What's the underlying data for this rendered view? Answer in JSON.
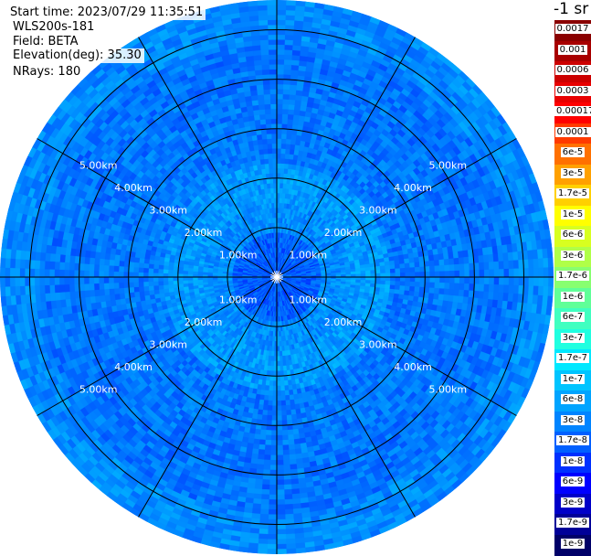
{
  "header": {
    "start_time": "Start time: 2023/07/29 11:35:51",
    "instrument": "WLS200s-181",
    "field": "Field: BETA",
    "elevation": "Elevation(deg): 35.30",
    "nrays": "NRays: 180"
  },
  "colorbar": {
    "unit": "-1 sr",
    "levels": [
      {
        "label": "0.0017",
        "color": "#8a0000"
      },
      {
        "label": "0.001",
        "color": "#a80000"
      },
      {
        "label": "0.0006",
        "color": "#cc0000"
      },
      {
        "label": "0.0003",
        "color": "#e80000"
      },
      {
        "label": "0.00017",
        "color": "#ff0000"
      },
      {
        "label": "0.0001",
        "color": "#ff3a00"
      },
      {
        "label": "6e-5",
        "color": "#ff7000"
      },
      {
        "label": "3e-5",
        "color": "#ffa000"
      },
      {
        "label": "1.7e-5",
        "color": "#ffd000"
      },
      {
        "label": "1e-5",
        "color": "#ffff00"
      },
      {
        "label": "6e-6",
        "color": "#d8ff20"
      },
      {
        "label": "3e-6",
        "color": "#b0ff48"
      },
      {
        "label": "1.7e-6",
        "color": "#88ff70"
      },
      {
        "label": "1e-6",
        "color": "#60ff98"
      },
      {
        "label": "6e-7",
        "color": "#40ffc0"
      },
      {
        "label": "3e-7",
        "color": "#20ffe0"
      },
      {
        "label": "1.7e-7",
        "color": "#00e8ff"
      },
      {
        "label": "1e-7",
        "color": "#00c4ff"
      },
      {
        "label": "6e-8",
        "color": "#00a4ff"
      },
      {
        "label": "3e-8",
        "color": "#0084ff"
      },
      {
        "label": "1.7e-8",
        "color": "#0060ff"
      },
      {
        "label": "1e-8",
        "color": "#0030ff"
      },
      {
        "label": "6e-9",
        "color": "#0000ff"
      },
      {
        "label": "3e-9",
        "color": "#0000c8"
      },
      {
        "label": "1.7e-9",
        "color": "#000098"
      },
      {
        "label": "1e-9",
        "color": "#000068"
      }
    ]
  },
  "chart_data": {
    "type": "heatmap",
    "projection": "polar (plan position indicator)",
    "range_rings_km": [
      1,
      2,
      3,
      4,
      5
    ],
    "range_labels": [
      "1.00km",
      "2.00km",
      "3.00km",
      "4.00km",
      "5.00km"
    ],
    "azimuth_grid_step_deg": 30,
    "max_range_km": 5.6,
    "field_value_profile": [
      {
        "range_km": 0.5,
        "level": "6e-9"
      },
      {
        "range_km": 1.2,
        "level": "1.7e-8"
      },
      {
        "range_km": 2.0,
        "level": "3e-8"
      },
      {
        "range_km": 3.0,
        "level": "1.7e-8"
      },
      {
        "range_km": 4.0,
        "level": "1.7e-8"
      },
      {
        "range_km": 5.3,
        "level": "3e-8"
      }
    ],
    "colors": {
      "inner": "#0060ff",
      "ring": "#00a4ff",
      "outer": "#0a6ef0",
      "edge": "#0090ff"
    }
  }
}
